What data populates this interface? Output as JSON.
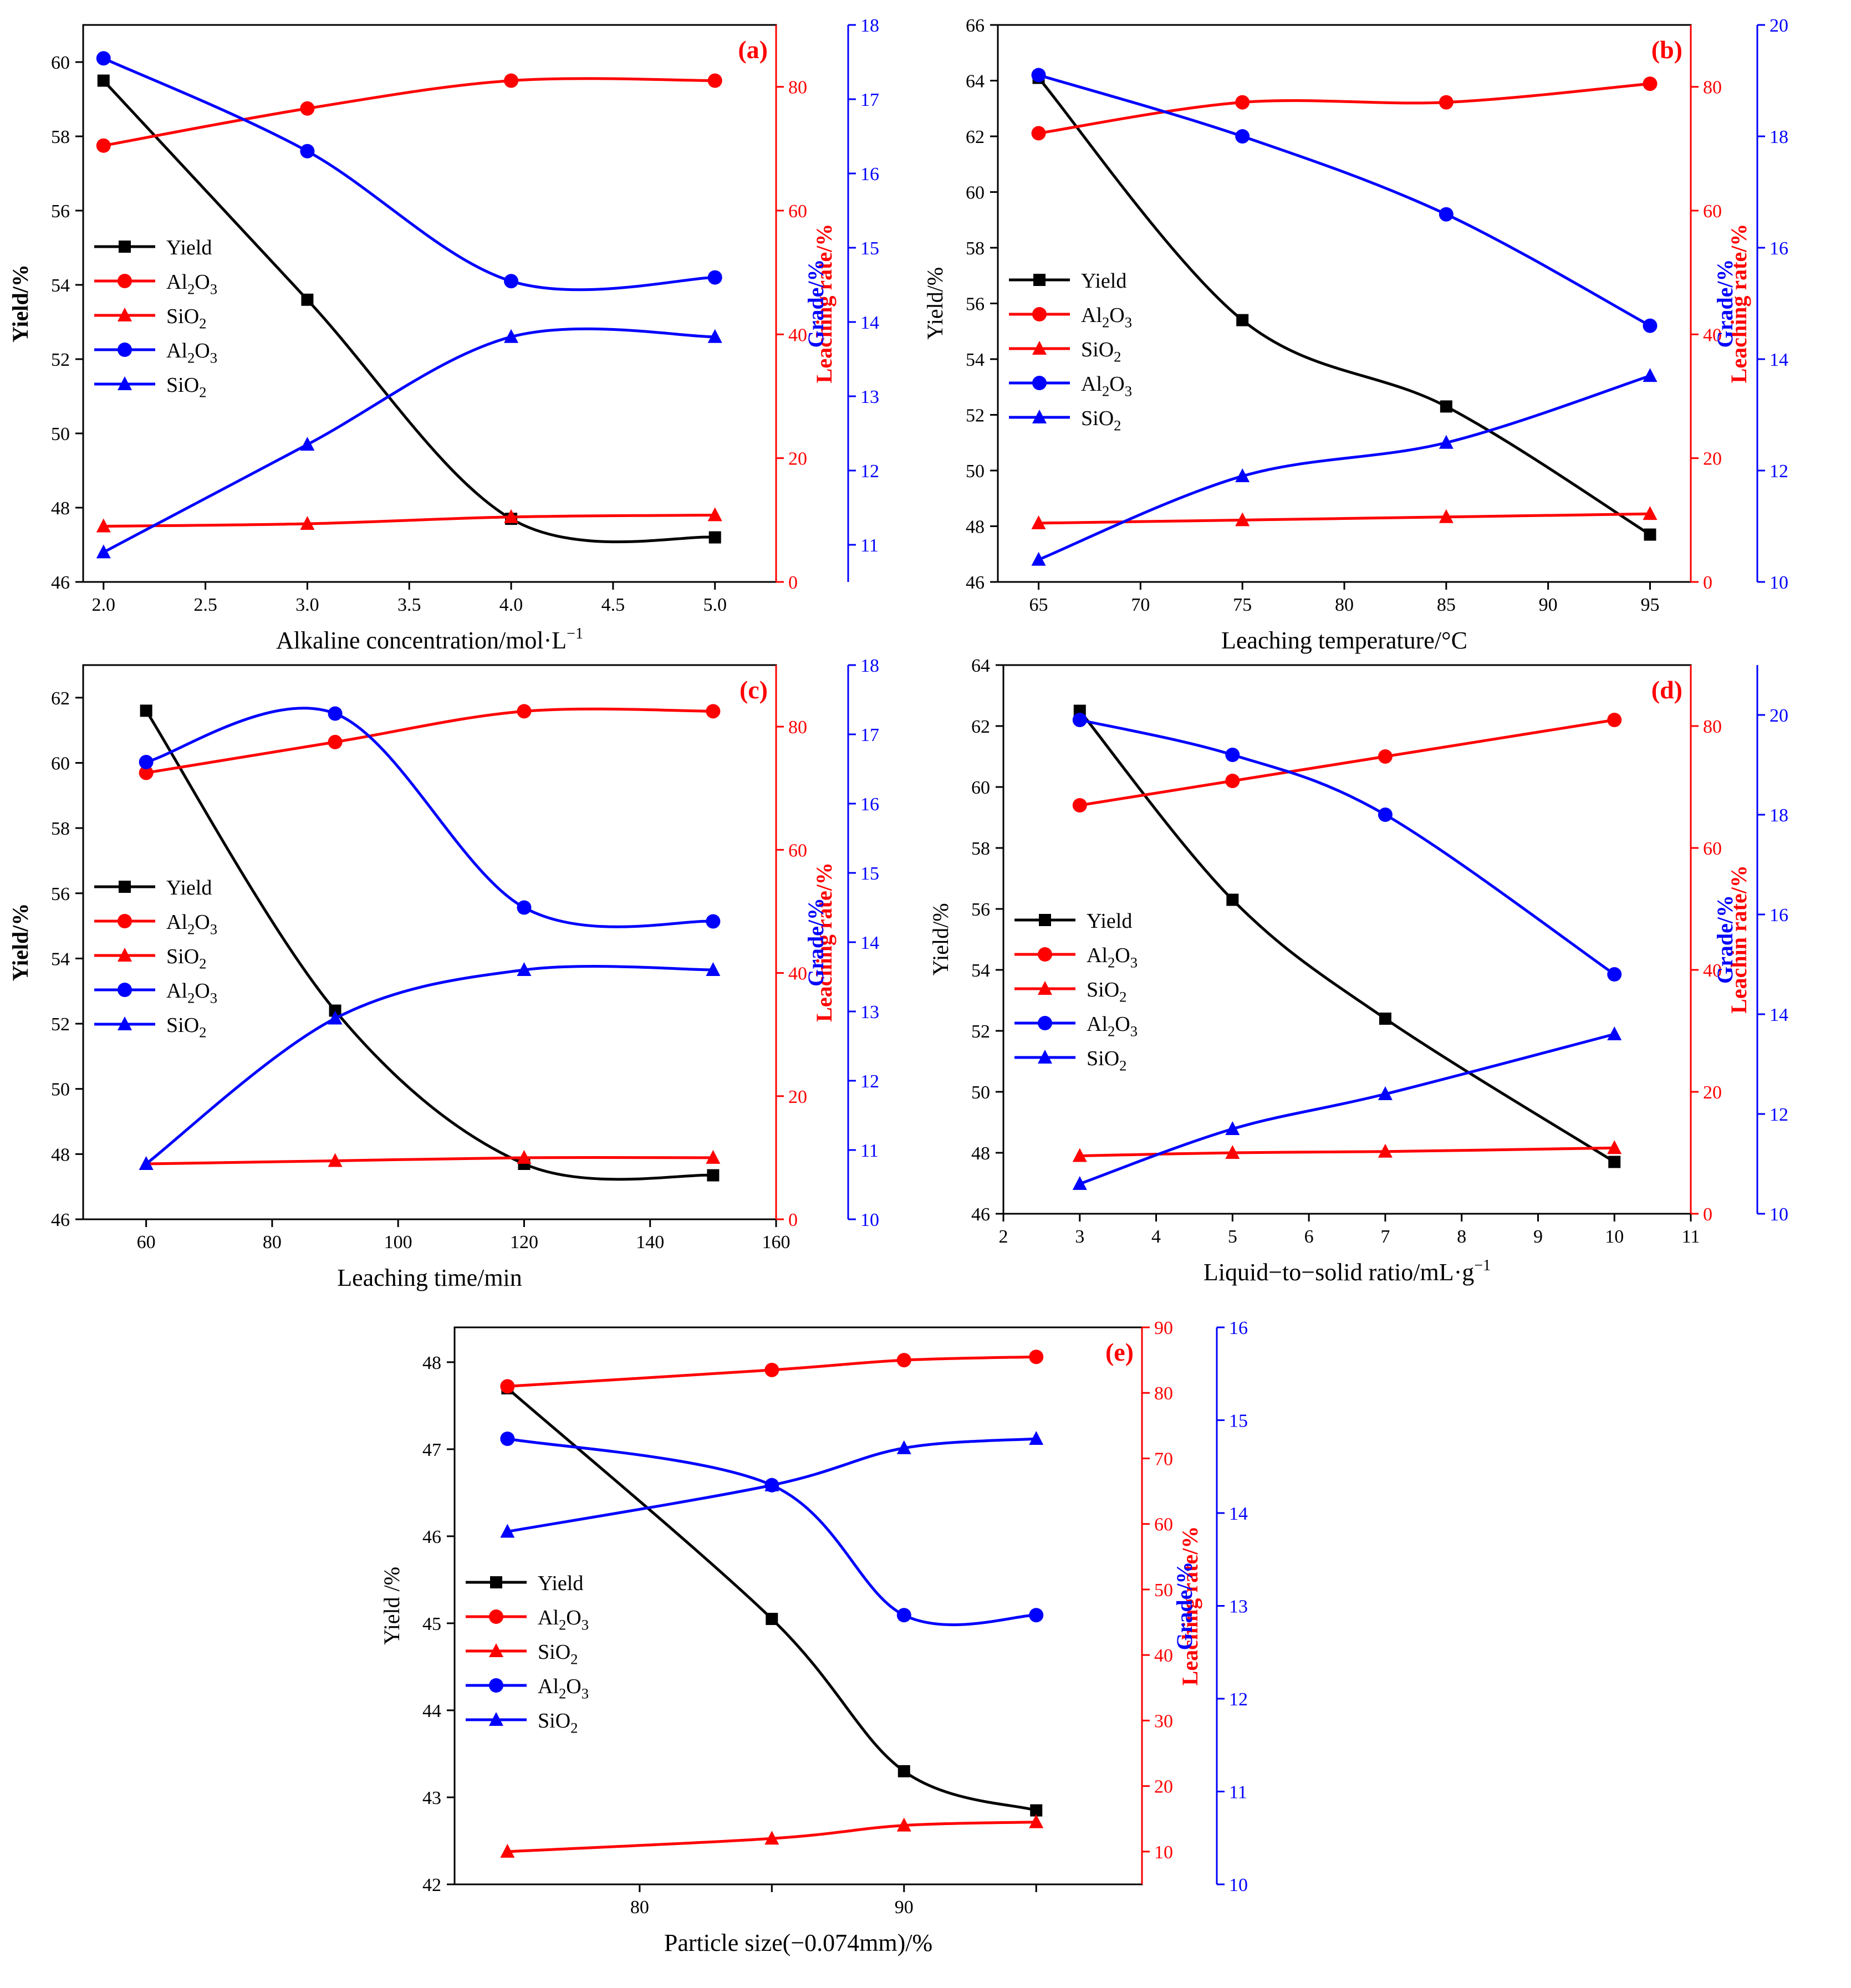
{
  "colors": {
    "yield": "#000000",
    "leach": "#ff0000",
    "grade": "#0000ff"
  },
  "chart_data": [
    {
      "panel": "(a)",
      "type": "line",
      "xlabel": "Alkaline concentration/mol·L",
      "xlabel_sup": "−1",
      "ylabel_left": "Yield/%",
      "ylabel_right1": "Leaching rate/%",
      "ylabel_right2": "Grade/%",
      "x": [
        2.0,
        3.0,
        4.0,
        5.0
      ],
      "xlim": [
        1.9,
        5.3
      ],
      "xticks": [
        2.0,
        2.5,
        3.0,
        3.5,
        4.0,
        4.5,
        5.0
      ],
      "xtick_labels": [
        "2.0",
        "2.5",
        "3.0",
        "3.5",
        "4.0",
        "4.5",
        "5.0"
      ],
      "ylim_left": [
        46,
        61
      ],
      "yticks_left": [
        46,
        48,
        50,
        52,
        54,
        56,
        58,
        60
      ],
      "ylim_right1": [
        0,
        90
      ],
      "yticks_right1": [
        0,
        20,
        40,
        60,
        80
      ],
      "ylim_right2": [
        10.5,
        18
      ],
      "yticks_right2": [
        11,
        12,
        13,
        14,
        15,
        16,
        17,
        18
      ],
      "series": [
        {
          "name": "Yield",
          "axis": "left",
          "marker": "square",
          "color": "#000000",
          "values": [
            59.5,
            53.6,
            47.7,
            47.2
          ]
        },
        {
          "name": "Al2O3",
          "axis": "right1",
          "marker": "circle",
          "color": "#ff0000",
          "values": [
            70.5,
            76.5,
            81,
            81
          ]
        },
        {
          "name": "SiO2",
          "axis": "right1",
          "marker": "triangle",
          "color": "#ff0000",
          "values": [
            9,
            9.4,
            10.5,
            10.8
          ]
        },
        {
          "name": "Al2O3",
          "axis": "right2",
          "marker": "circle",
          "color": "#0000ff",
          "values": [
            17.55,
            16.3,
            14.55,
            14.6
          ]
        },
        {
          "name": "SiO2",
          "axis": "right2",
          "marker": "triangle",
          "color": "#0000ff",
          "values": [
            10.9,
            12.35,
            13.8,
            13.8
          ]
        }
      ],
      "legend": [
        "Yield",
        "Al2O3",
        "SiO2",
        "Al2O3",
        "SiO2"
      ]
    },
    {
      "panel": "(b)",
      "type": "line",
      "xlabel": "Leaching temperature/°C",
      "xlabel_sup": "",
      "ylabel_left": "Yield/%",
      "ylabel_right1": "Leaching rate/%",
      "ylabel_right2": "Grade/%",
      "x": [
        65,
        75,
        85,
        95
      ],
      "xlim": [
        63,
        97
      ],
      "xticks": [
        65,
        70,
        75,
        80,
        85,
        90,
        95
      ],
      "xtick_labels": [
        "65",
        "70",
        "75",
        "80",
        "85",
        "90",
        "95"
      ],
      "ylim_left": [
        46,
        66
      ],
      "yticks_left": [
        46,
        48,
        50,
        52,
        54,
        56,
        58,
        60,
        62,
        64,
        66
      ],
      "ylim_right1": [
        0,
        90
      ],
      "yticks_right1": [
        0,
        20,
        40,
        60,
        80
      ],
      "ylim_right2": [
        10,
        20
      ],
      "yticks_right2": [
        10,
        12,
        14,
        16,
        18,
        20
      ],
      "series": [
        {
          "name": "Yield",
          "axis": "left",
          "marker": "square",
          "color": "#000000",
          "values": [
            64.1,
            55.4,
            52.3,
            47.7
          ]
        },
        {
          "name": "Al2O3",
          "axis": "right1",
          "marker": "circle",
          "color": "#ff0000",
          "values": [
            72.5,
            77.5,
            77.5,
            80.5
          ]
        },
        {
          "name": "SiO2",
          "axis": "right1",
          "marker": "triangle",
          "color": "#ff0000",
          "values": [
            9.5,
            10,
            10.5,
            11
          ]
        },
        {
          "name": "Al2O3",
          "axis": "right2",
          "marker": "circle",
          "color": "#0000ff",
          "values": [
            19.1,
            18.0,
            16.6,
            14.6
          ]
        },
        {
          "name": "SiO2",
          "axis": "right2",
          "marker": "triangle",
          "color": "#0000ff",
          "values": [
            10.4,
            11.9,
            12.5,
            13.7
          ]
        }
      ],
      "legend": [
        "Yield",
        "Al2O3",
        "SiO2",
        "Al2O3",
        "SiO2"
      ]
    },
    {
      "panel": "(c)",
      "type": "line",
      "xlabel": "Leaching time/min",
      "xlabel_sup": "",
      "ylabel_left": "Yield/%",
      "ylabel_right1": "Leaching rate/%",
      "ylabel_right2": "Grade/%",
      "x": [
        60,
        90,
        120,
        150
      ],
      "xlim": [
        50,
        160
      ],
      "xticks": [
        60,
        80,
        100,
        120,
        140,
        160
      ],
      "xtick_labels": [
        "60",
        "80",
        "100",
        "120",
        "140",
        "160"
      ],
      "ylim_left": [
        46,
        63
      ],
      "yticks_left": [
        46,
        48,
        50,
        52,
        54,
        56,
        58,
        60,
        62
      ],
      "ylim_right1": [
        0,
        90
      ],
      "yticks_right1": [
        0,
        20,
        40,
        60,
        80
      ],
      "ylim_right2": [
        10,
        18
      ],
      "yticks_right2": [
        10,
        11,
        12,
        13,
        14,
        15,
        16,
        17,
        18
      ],
      "series": [
        {
          "name": "Yield",
          "axis": "left",
          "marker": "square",
          "color": "#000000",
          "values": [
            61.6,
            52.4,
            47.7,
            47.35
          ]
        },
        {
          "name": "Al2O3",
          "axis": "right1",
          "marker": "circle",
          "color": "#ff0000",
          "values": [
            72.5,
            77.5,
            82.5,
            82.5
          ]
        },
        {
          "name": "SiO2",
          "axis": "right1",
          "marker": "triangle",
          "color": "#ff0000",
          "values": [
            9,
            9.5,
            10,
            10
          ]
        },
        {
          "name": "Al2O3",
          "axis": "right2",
          "marker": "circle",
          "color": "#0000ff",
          "values": [
            16.6,
            17.3,
            14.5,
            14.3
          ]
        },
        {
          "name": "SiO2",
          "axis": "right2",
          "marker": "triangle",
          "color": "#0000ff",
          "values": [
            10.8,
            12.9,
            13.6,
            13.6
          ]
        }
      ],
      "legend": [
        "Yield",
        "Al2O3",
        "SiO2",
        "Al2O3",
        "SiO2"
      ]
    },
    {
      "panel": "(d)",
      "type": "line",
      "xlabel": "Liquid−to−solid ratio/mL·g",
      "xlabel_sup": "−1",
      "ylabel_left": "Yield/%",
      "ylabel_right1": "Leachin rate/%",
      "ylabel_right2": "Grade/%",
      "x": [
        3,
        5,
        7,
        10
      ],
      "xlim": [
        2,
        11
      ],
      "xticks": [
        2,
        3,
        4,
        5,
        6,
        7,
        8,
        9,
        10,
        11
      ],
      "xtick_labels": [
        "2",
        "3",
        "4",
        "5",
        "6",
        "7",
        "8",
        "9",
        "10",
        "11"
      ],
      "ylim_left": [
        46,
        64
      ],
      "yticks_left": [
        46,
        48,
        50,
        52,
        54,
        56,
        58,
        60,
        62,
        64
      ],
      "ylim_right1": [
        0,
        90
      ],
      "yticks_right1": [
        0,
        20,
        40,
        60,
        80
      ],
      "ylim_right2": [
        10,
        21
      ],
      "yticks_right2": [
        10,
        12,
        14,
        16,
        18,
        20
      ],
      "series": [
        {
          "name": "Yield",
          "axis": "left",
          "marker": "square",
          "color": "#000000",
          "values": [
            62.5,
            56.3,
            52.4,
            47.7
          ]
        },
        {
          "name": "Al2O3",
          "axis": "right1",
          "marker": "circle",
          "color": "#ff0000",
          "values": [
            67,
            71,
            75,
            81
          ]
        },
        {
          "name": "SiO2",
          "axis": "right1",
          "marker": "triangle",
          "color": "#ff0000",
          "values": [
            9.5,
            10,
            10.2,
            10.8
          ]
        },
        {
          "name": "Al2O3",
          "axis": "right2",
          "marker": "circle",
          "color": "#0000ff",
          "values": [
            19.9,
            19.2,
            18.0,
            14.8
          ]
        },
        {
          "name": "SiO2",
          "axis": "right2",
          "marker": "triangle",
          "color": "#0000ff",
          "values": [
            10.6,
            11.7,
            12.4,
            13.6
          ]
        }
      ],
      "legend": [
        "Yield",
        "Al2O3",
        "SiO2",
        "Al2O3",
        "SiO2"
      ]
    },
    {
      "panel": "(e)",
      "type": "line",
      "xlabel": "Particle size(−0.074mm)/%",
      "xlabel_sup": "",
      "ylabel_left": "Yield /%",
      "ylabel_right1": "Leaching rate/%",
      "ylabel_right2": "Grade/%",
      "x": [
        75,
        85,
        90,
        95
      ],
      "xlim": [
        73,
        99
      ],
      "xticks": [
        80,
        85,
        90,
        95
      ],
      "xtick_labels": [
        "80",
        "",
        "90",
        ""
      ],
      "ylim_left": [
        42,
        48.4
      ],
      "yticks_left": [
        42,
        43,
        44,
        45,
        46,
        47,
        48
      ],
      "ylim_right1": [
        5,
        90
      ],
      "yticks_right1": [
        10,
        20,
        30,
        40,
        50,
        60,
        70,
        80,
        90
      ],
      "ylim_right2": [
        10,
        16
      ],
      "yticks_right2": [
        10,
        11,
        12,
        13,
        14,
        15,
        16
      ],
      "series": [
        {
          "name": "Yield",
          "axis": "left",
          "marker": "square",
          "color": "#000000",
          "values": [
            47.7,
            45.05,
            43.3,
            42.85
          ]
        },
        {
          "name": "Al2O3",
          "axis": "right1",
          "marker": "circle",
          "color": "#ff0000",
          "values": [
            81,
            83.5,
            85,
            85.5
          ]
        },
        {
          "name": "SiO2",
          "axis": "right1",
          "marker": "triangle",
          "color": "#ff0000",
          "values": [
            10,
            12,
            14,
            14.5
          ]
        },
        {
          "name": "Al2O3",
          "axis": "right2",
          "marker": "circle",
          "color": "#0000ff",
          "values": [
            14.8,
            14.3,
            12.9,
            12.9
          ]
        },
        {
          "name": "SiO2",
          "axis": "right2",
          "marker": "triangle",
          "color": "#0000ff",
          "values": [
            13.8,
            14.3,
            14.7,
            14.8
          ]
        }
      ],
      "legend": [
        "Yield",
        "Al2O3",
        "SiO2",
        "Al2O3",
        "SiO2"
      ]
    }
  ]
}
